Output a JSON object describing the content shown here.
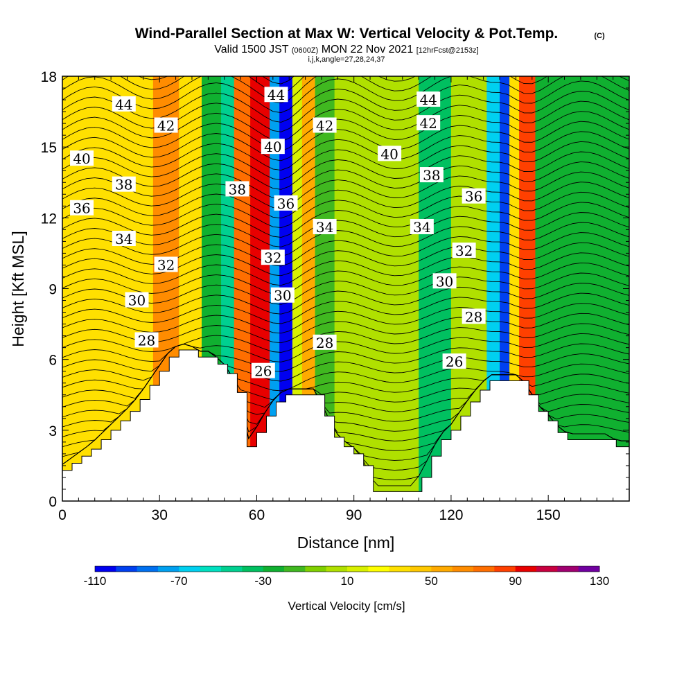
{
  "chart_data": {
    "type": "heatmap",
    "title": "Wind-Parallel Section at Max W: Vertical Velocity & Pot.Temp.",
    "copyright_mark": "(C)",
    "subtitle": {
      "valid_prefix": "Valid 1500 JST",
      "utc": "(0600Z)",
      "date": "MON 22 Nov 2021",
      "forecast": "[12hrFcst@2153z]"
    },
    "indices": "i,j,k,angle=27,28,24,37",
    "xlabel": "Distance [nm]",
    "ylabel": "Height [Kft MSL]",
    "xlim": [
      0,
      175
    ],
    "ylim": [
      0,
      18
    ],
    "x_ticks": [
      0,
      30,
      60,
      90,
      120,
      150
    ],
    "y_ticks": [
      0,
      3,
      6,
      9,
      12,
      15,
      18
    ],
    "colorbar": {
      "label": "Vertical Velocity [cm/s]",
      "range": [
        -110,
        130
      ],
      "step": 10,
      "tick_labels": [
        "-110",
        "-70",
        "-30",
        "10",
        "50",
        "90",
        "130"
      ],
      "colors": [
        "#0000f0",
        "#0040f0",
        "#0070f0",
        "#00a0f0",
        "#00d0f0",
        "#00e0c0",
        "#00d090",
        "#00c060",
        "#10b030",
        "#40b820",
        "#80d000",
        "#b0e000",
        "#d8f000",
        "#ffff00",
        "#ffe000",
        "#ffc800",
        "#ffaa00",
        "#ff8c00",
        "#ff6e00",
        "#ff4000",
        "#e80000",
        "#c80040",
        "#a00070",
        "#7000a0"
      ]
    },
    "vertical_velocity_bands": [
      {
        "x": [
          0,
          28
        ],
        "value": 30
      },
      {
        "x": [
          28,
          36
        ],
        "value": 60
      },
      {
        "x": [
          36,
          43
        ],
        "value": 35
      },
      {
        "x": [
          43,
          49
        ],
        "value": -25
      },
      {
        "x": [
          49,
          53
        ],
        "value": -50
      },
      {
        "x": [
          53,
          58
        ],
        "value": 75
      },
      {
        "x": [
          58,
          64
        ],
        "value": 90
      },
      {
        "x": [
          64,
          67
        ],
        "value": -80
      },
      {
        "x": [
          67,
          71
        ],
        "value": -105
      },
      {
        "x": [
          71,
          74
        ],
        "value": 10
      },
      {
        "x": [
          74,
          78
        ],
        "value": 55
      },
      {
        "x": [
          78,
          84
        ],
        "value": -20
      },
      {
        "x": [
          84,
          110
        ],
        "value": 5
      },
      {
        "x": [
          110,
          120
        ],
        "value": -35
      },
      {
        "x": [
          120,
          131
        ],
        "value": 5
      },
      {
        "x": [
          131,
          135
        ],
        "value": -70
      },
      {
        "x": [
          135,
          138
        ],
        "value": -100
      },
      {
        "x": [
          138,
          141
        ],
        "value": 30
      },
      {
        "x": [
          141,
          146
        ],
        "value": 80
      },
      {
        "x": [
          146,
          175
        ],
        "value": -30
      }
    ],
    "terrain": {
      "x": [
        0,
        3,
        6,
        9,
        12,
        15,
        18,
        21,
        24,
        27,
        30,
        33,
        36,
        39,
        42,
        45,
        48,
        51,
        54,
        57,
        60,
        63,
        66,
        69,
        72,
        75,
        78,
        81,
        84,
        87,
        90,
        93,
        96,
        99,
        102,
        105,
        108,
        111,
        114,
        117,
        120,
        123,
        126,
        129,
        132,
        135,
        138,
        141,
        144,
        147,
        150,
        153,
        156,
        159,
        162,
        165,
        168,
        171,
        175
      ],
      "height": [
        1.3,
        1.6,
        1.9,
        2.2,
        2.6,
        3.0,
        3.4,
        3.8,
        4.3,
        4.9,
        5.5,
        6.1,
        6.4,
        6.4,
        6.1,
        6.1,
        5.8,
        5.4,
        4.6,
        2.3,
        2.9,
        3.6,
        4.2,
        4.5,
        4.5,
        4.5,
        4.5,
        3.6,
        2.7,
        2.3,
        2.0,
        1.5,
        0.4,
        0.4,
        0.4,
        0.4,
        0.4,
        1.0,
        1.9,
        2.6,
        3.0,
        3.6,
        4.2,
        4.7,
        5.1,
        5.1,
        5.1,
        5.1,
        4.5,
        3.8,
        3.4,
        2.9,
        2.6,
        2.6,
        2.6,
        2.6,
        2.6,
        2.3,
        2.3
      ]
    },
    "potential_temperature": {
      "interval": 1,
      "labeled_values": [
        26,
        28,
        30,
        32,
        34,
        36,
        38,
        40,
        42,
        44
      ],
      "labels": [
        {
          "text": "44",
          "x": 19,
          "y": 16.8
        },
        {
          "text": "44",
          "x": 66,
          "y": 17.2
        },
        {
          "text": "44",
          "x": 113,
          "y": 17.0
        },
        {
          "text": "42",
          "x": 32,
          "y": 15.9
        },
        {
          "text": "42",
          "x": 81,
          "y": 15.9
        },
        {
          "text": "42",
          "x": 113,
          "y": 16.0
        },
        {
          "text": "40",
          "x": 6,
          "y": 14.5
        },
        {
          "text": "40",
          "x": 65,
          "y": 15.0
        },
        {
          "text": "40",
          "x": 101,
          "y": 14.7
        },
        {
          "text": "38",
          "x": 19,
          "y": 13.4
        },
        {
          "text": "38",
          "x": 54,
          "y": 13.2
        },
        {
          "text": "38",
          "x": 114,
          "y": 13.8
        },
        {
          "text": "36",
          "x": 6,
          "y": 12.4
        },
        {
          "text": "36",
          "x": 69,
          "y": 12.6
        },
        {
          "text": "36",
          "x": 127,
          "y": 12.9
        },
        {
          "text": "34",
          "x": 19,
          "y": 11.1
        },
        {
          "text": "34",
          "x": 81,
          "y": 11.6
        },
        {
          "text": "34",
          "x": 111,
          "y": 11.6
        },
        {
          "text": "32",
          "x": 32,
          "y": 10.0
        },
        {
          "text": "32",
          "x": 65,
          "y": 10.3
        },
        {
          "text": "32",
          "x": 124,
          "y": 10.6
        },
        {
          "text": "30",
          "x": 23,
          "y": 8.5
        },
        {
          "text": "30",
          "x": 68,
          "y": 8.7
        },
        {
          "text": "30",
          "x": 118,
          "y": 9.3
        },
        {
          "text": "28",
          "x": 26,
          "y": 6.8
        },
        {
          "text": "28",
          "x": 81,
          "y": 6.7
        },
        {
          "text": "28",
          "x": 127,
          "y": 7.8
        },
        {
          "text": "26",
          "x": 62,
          "y": 5.5
        },
        {
          "text": "26",
          "x": 121,
          "y": 5.9
        }
      ]
    }
  }
}
